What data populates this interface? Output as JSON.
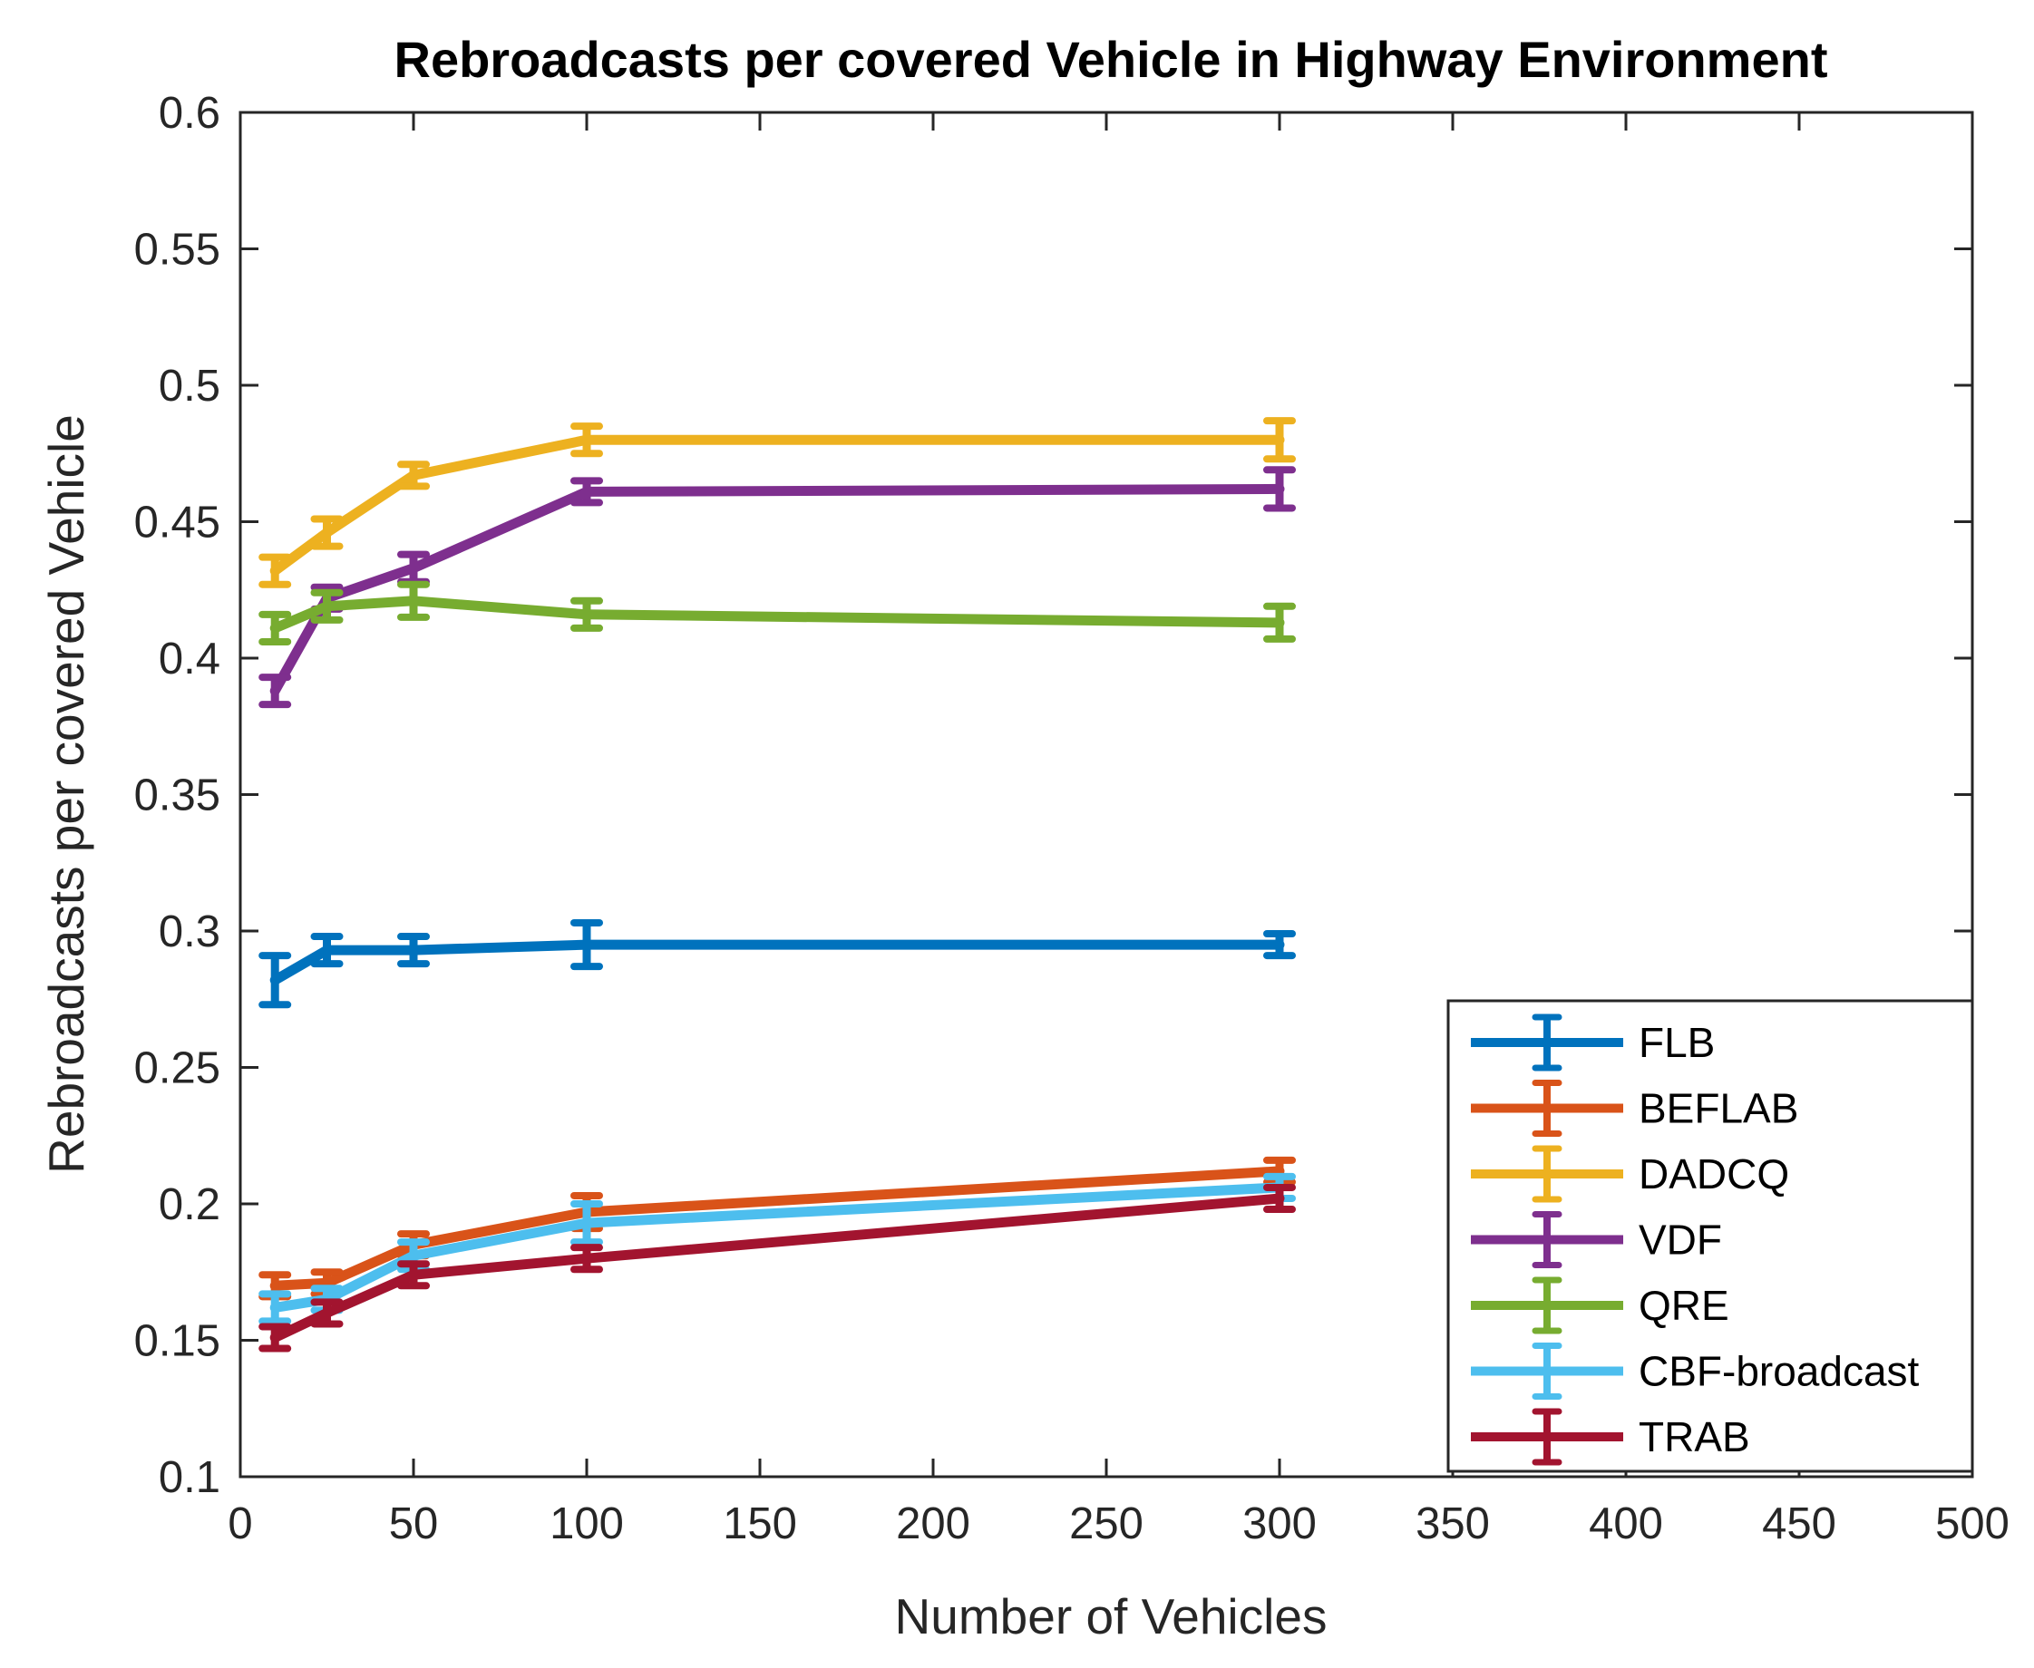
{
  "chart_data": {
    "type": "line",
    "title": "Rebroadcasts per covered Vehicle in Highway Environment",
    "xlabel": "Number of Vehicles",
    "ylabel": "Rebroadcasts per covered Vehicle",
    "xlim": [
      0,
      500
    ],
    "ylim": [
      0.1,
      0.6
    ],
    "xticks": [
      0,
      50,
      100,
      150,
      200,
      250,
      300,
      350,
      400,
      450,
      500
    ],
    "xtick_labels": [
      "0",
      "50",
      "100",
      "150",
      "200",
      "250",
      "300",
      "350",
      "400",
      "450",
      "500"
    ],
    "yticks": [
      0.1,
      0.15,
      0.2,
      0.25,
      0.3,
      0.35,
      0.4,
      0.45,
      0.5,
      0.55,
      0.6
    ],
    "ytick_labels": [
      "0.1",
      "0.15",
      "0.2",
      "0.25",
      "0.3",
      "0.35",
      "0.4",
      "0.45",
      "0.5",
      "0.55",
      "0.6"
    ],
    "grid": false,
    "legend_position": "bottom-right",
    "x": [
      10,
      25,
      50,
      100,
      300
    ],
    "series": [
      {
        "name": "FLB",
        "color": "#0072BD",
        "values": [
          0.282,
          0.293,
          0.293,
          0.295,
          0.295
        ],
        "errors": [
          0.009,
          0.005,
          0.005,
          0.008,
          0.004
        ]
      },
      {
        "name": "BEFLAB",
        "color": "#D95319",
        "values": [
          0.17,
          0.171,
          0.185,
          0.197,
          0.212
        ],
        "errors": [
          0.004,
          0.004,
          0.004,
          0.006,
          0.004
        ]
      },
      {
        "name": "DADCQ",
        "color": "#EDB120",
        "values": [
          0.432,
          0.446,
          0.467,
          0.48,
          0.48
        ],
        "errors": [
          0.005,
          0.005,
          0.004,
          0.005,
          0.007
        ]
      },
      {
        "name": "VDF",
        "color": "#7E2F8E",
        "values": [
          0.388,
          0.422,
          0.433,
          0.461,
          0.462
        ],
        "errors": [
          0.005,
          0.004,
          0.005,
          0.004,
          0.007
        ]
      },
      {
        "name": "QRE",
        "color": "#77AC30",
        "values": [
          0.411,
          0.419,
          0.421,
          0.416,
          0.413
        ],
        "errors": [
          0.005,
          0.005,
          0.006,
          0.005,
          0.006
        ]
      },
      {
        "name": "CBF-broadcast",
        "color": "#4DBEEE",
        "values": [
          0.162,
          0.165,
          0.181,
          0.193,
          0.206
        ],
        "errors": [
          0.005,
          0.004,
          0.005,
          0.007,
          0.004
        ]
      },
      {
        "name": "TRAB",
        "color": "#A2142F",
        "values": [
          0.151,
          0.16,
          0.174,
          0.18,
          0.202
        ],
        "errors": [
          0.004,
          0.004,
          0.004,
          0.004,
          0.004
        ]
      }
    ]
  }
}
